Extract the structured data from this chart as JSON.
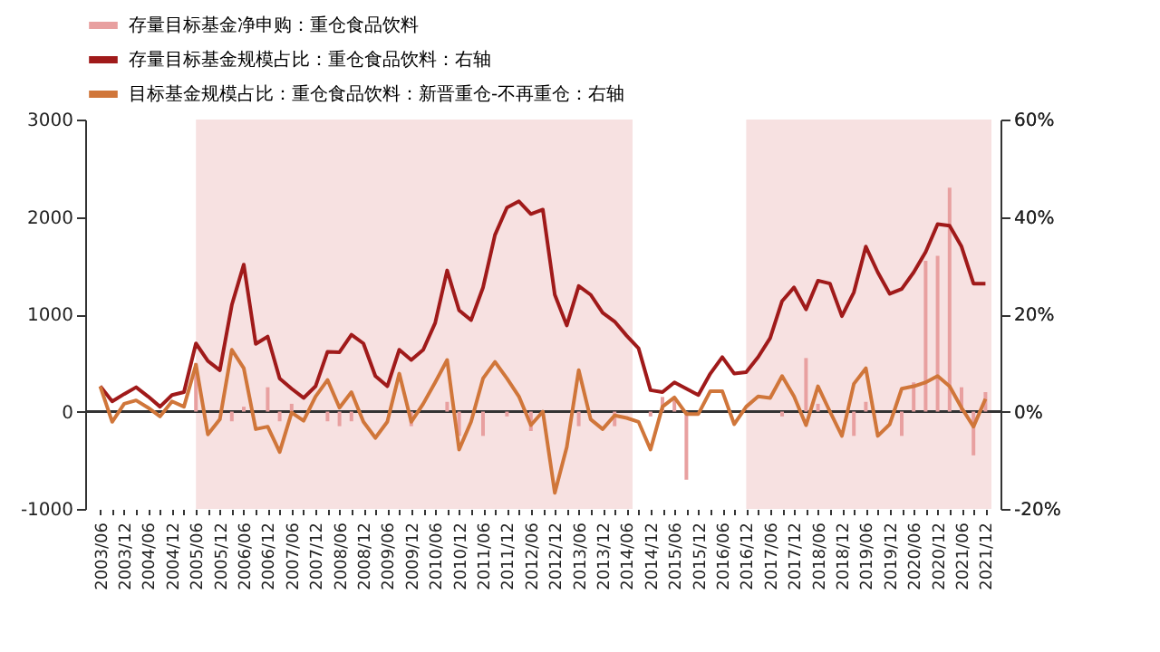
{
  "chart_data": {
    "type": "bar",
    "categories": [
      "2003/06",
      null,
      "2003/12",
      null,
      "2004/06",
      null,
      "2004/12",
      null,
      "2005/06",
      null,
      "2005/12",
      null,
      "2006/06",
      null,
      "2006/12",
      null,
      "2007/06",
      null,
      "2007/12",
      null,
      "2008/06",
      null,
      "2008/12",
      null,
      "2009/06",
      null,
      "2009/12",
      null,
      "2010/06",
      null,
      "2010/12",
      null,
      "2011/06",
      null,
      "2011/12",
      null,
      "2012/06",
      null,
      "2012/12",
      null,
      "2013/06",
      null,
      "2013/12",
      null,
      "2014/06",
      null,
      "2014/12",
      null,
      "2015/06",
      null,
      "2015/12",
      null,
      "2016/06",
      null,
      "2016/12",
      null,
      "2017/06",
      null,
      "2017/12",
      null,
      "2018/06",
      null,
      "2018/12",
      null,
      "2019/06",
      null,
      "2019/12",
      null,
      "2020/06",
      null,
      "2020/12",
      null,
      "2021/06",
      null,
      "2021/12"
    ],
    "series": [
      {
        "name": "存量目标基金净申购：重仓食品饮料",
        "color": "#e8a0a0",
        "values": [
          null,
          null,
          null,
          null,
          null,
          null,
          null,
          null,
          500,
          null,
          null,
          -100,
          50,
          null,
          250,
          -100,
          80,
          null,
          null,
          -100,
          -150,
          -100,
          null,
          null,
          null,
          null,
          -150,
          null,
          null,
          100,
          -250,
          null,
          -250,
          null,
          -50,
          null,
          -200,
          null,
          null,
          null,
          -150,
          null,
          null,
          -150,
          null,
          null,
          -50,
          150,
          150,
          -700,
          null,
          null,
          null,
          null,
          null,
          null,
          null,
          -50,
          null,
          550,
          80,
          null,
          null,
          -250,
          100,
          null,
          null,
          -250,
          300,
          1550,
          1600,
          2300,
          250,
          -450,
          200
        ]
      },
      {
        "name": "存量目标基金规模占比：重仓食品饮料：右轴",
        "type": "line",
        "axis": "y2",
        "color": "#a01a1a",
        "values": [
          5.2,
          2.1,
          3.6,
          5,
          3.1,
          1,
          3.4,
          4,
          14,
          10.4,
          8.5,
          21.9,
          30.2,
          13.9,
          15.4,
          6.8,
          4.7,
          2.8,
          5.2,
          12.3,
          12.2,
          15.8,
          14,
          7.3,
          5.2,
          12.7,
          10.6,
          12.7,
          18.2,
          29,
          20.8,
          18.8,
          25.5,
          36.3,
          41.9,
          43.2,
          40.6,
          41.5,
          24,
          17.7,
          25.8,
          24,
          20.3,
          18.5,
          15.6,
          13,
          4.4,
          4,
          6,
          4.7,
          3.4,
          7.8,
          11.2,
          7.8,
          8.1,
          11.2,
          15.1,
          22.7,
          25.5,
          21,
          26.9,
          26.3,
          19.6,
          24.5,
          33.9,
          28.6,
          24.2,
          25.2,
          28.6,
          32.8,
          38.5,
          38.2,
          33.9,
          26.3,
          26.3
        ]
      },
      {
        "name": "目标基金规模占比：重仓食品饮料：新晋重仓-不再重仓：右轴",
        "type": "line",
        "axis": "y2",
        "color": "#d0763a",
        "values": [
          5.2,
          -2.1,
          1.6,
          2.3,
          0.8,
          -1,
          2.1,
          1,
          9.6,
          -4.7,
          -1.6,
          12.7,
          8.9,
          -3.6,
          -3.1,
          -8.3,
          -0.2,
          -1.9,
          3.1,
          6.5,
          0.8,
          4,
          -2.1,
          -5.4,
          -2.1,
          7.8,
          -2.1,
          1.6,
          6,
          10.6,
          -7.8,
          -2.1,
          6.8,
          10.2,
          6.8,
          3.1,
          -2.8,
          0,
          -16.7,
          -7.3,
          8.5,
          -1.6,
          -3.6,
          -0.8,
          -1.3,
          -2.1,
          -7.8,
          1,
          2.9,
          -0.5,
          -0.5,
          4.2,
          4.2,
          -2.6,
          1,
          3.1,
          2.8,
          7.3,
          3.1,
          -2.8,
          5.2,
          0,
          -5,
          5.7,
          8.9,
          -5,
          -2.6,
          4.7,
          5.2,
          6,
          7.3,
          5.2,
          0.8,
          -3.1,
          2.6
        ]
      }
    ],
    "ylim": [
      -1000,
      3000
    ],
    "yticks": [
      -1000,
      0,
      1000,
      2000,
      3000
    ],
    "y2lim": [
      -20,
      60
    ],
    "y2ticks": [
      {
        "value": -20,
        "label": "-20%"
      },
      {
        "value": 0,
        "label": "0%"
      },
      {
        "value": 20,
        "label": "20%"
      },
      {
        "value": 40,
        "label": "40%"
      },
      {
        "value": 60,
        "label": "60%"
      }
    ],
    "bands": [
      {
        "axis": "x",
        "from": "2005/06",
        "to": "2014/06",
        "color": "#f7e1e1"
      },
      {
        "axis": "x",
        "from": "2016/12",
        "to": "2021/12",
        "color": "#f7e1e1"
      }
    ],
    "ref_lines": [
      {
        "axis": "y",
        "value": 0,
        "color": "#333333"
      }
    ],
    "legend": "top",
    "grid": false,
    "marker": "none",
    "line_style": "solid"
  }
}
